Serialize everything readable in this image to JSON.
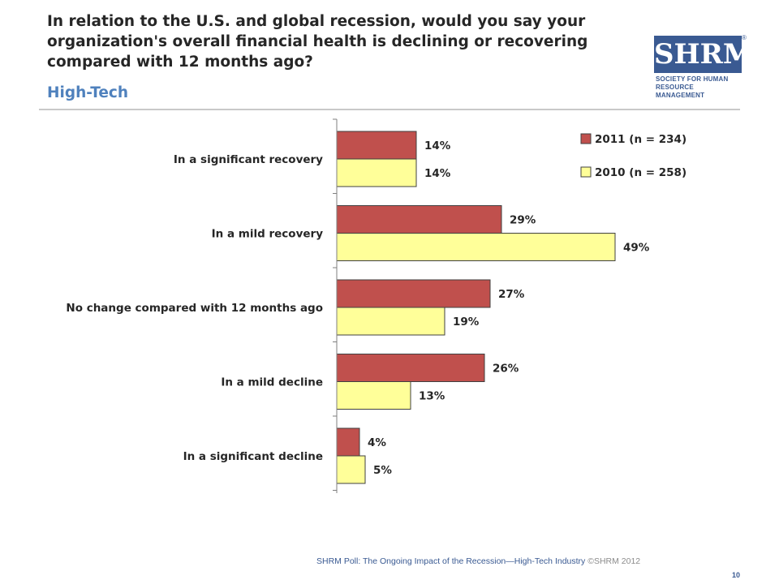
{
  "header": {
    "title": "In relation to the U.S. and global recession, would you say your organization's overall financial health is declining or recovering compared with 12 months ago?",
    "subtitle": "High-Tech"
  },
  "logo": {
    "letters": "SHRM",
    "reg": "®",
    "line1": "SOCIETY FOR HUMAN",
    "line2": "RESOURCE MANAGEMENT"
  },
  "footer": {
    "text": "SHRM Poll: The Ongoing Impact of the Recession—High-Tech Industry",
    "copyright": "©SHRM 2012",
    "page": "10"
  },
  "colors": {
    "series_2011": "#c0504d",
    "series_2010": "#ffff99",
    "axis": "#7f7f7f",
    "text": "#262626",
    "accent": "#4f81bd"
  },
  "chart_data": {
    "type": "bar",
    "orientation": "horizontal",
    "categories": [
      "In a significant recovery",
      "In a mild recovery",
      "No change compared with 12 months ago",
      "In a mild decline",
      "In a significant decline"
    ],
    "series": [
      {
        "name": "2011 (n = 234)",
        "values": [
          14,
          29,
          27,
          26,
          4
        ],
        "labels": [
          "14%",
          "29%",
          "27%",
          "26%",
          "4%"
        ]
      },
      {
        "name": "2010 (n = 258)",
        "values": [
          14,
          49,
          19,
          13,
          5
        ],
        "labels": [
          "14%",
          "49%",
          "19%",
          "13%",
          "5%"
        ]
      }
    ],
    "unit": "%",
    "xlim": [
      0,
      100
    ],
    "grid": false,
    "legend_position": "top-right"
  }
}
